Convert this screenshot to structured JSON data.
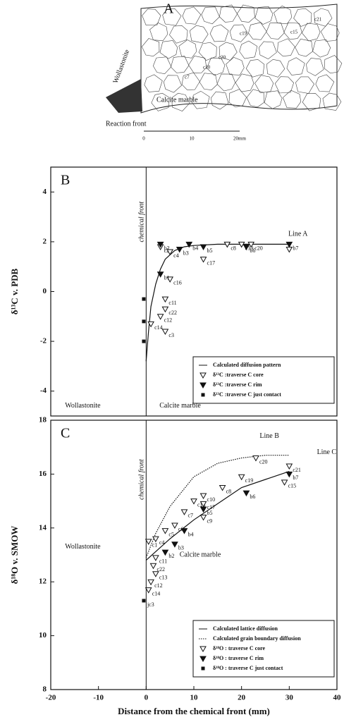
{
  "map": {
    "title": "A",
    "labels": [
      "Wollastonite",
      "Calcite marble",
      "Reaction front"
    ],
    "grains": [
      "c15",
      "c19",
      "c20",
      "c21",
      "c7",
      "c10"
    ],
    "scale": [
      "0",
      "10",
      "20mm"
    ]
  },
  "chart_data": [
    {
      "type": "scatter",
      "title": "B",
      "ylabel": "δ¹³C v. PDB",
      "annotations": [
        "chemical front",
        "Wollastonite",
        "Calcite marble",
        "Line A"
      ],
      "chemical_front_x": 0,
      "xlim": [
        -20,
        40
      ],
      "ylim": [
        -5,
        5
      ],
      "yticks": [
        -4,
        -2,
        0,
        2,
        4
      ],
      "legend": "lower right",
      "series": [
        {
          "name": "Calculated diffusion pattern",
          "marker": "line",
          "color": "#111",
          "x": [
            0,
            0.5,
            1,
            2,
            3,
            4,
            6,
            8,
            10,
            15,
            20,
            30
          ],
          "values": [
            -2.8,
            -1.6,
            -0.6,
            0.3,
            0.9,
            1.3,
            1.65,
            1.8,
            1.85,
            1.9,
            1.9,
            1.9
          ]
        },
        {
          "name": "δ¹³C :traverse C core",
          "marker": "triangle-open",
          "color": "#111",
          "x": [
            3,
            5,
            5,
            4,
            4,
            3,
            1,
            4,
            17,
            20,
            22,
            12,
            30
          ],
          "values": [
            1.8,
            1.6,
            0.5,
            -0.3,
            -0.7,
            -1.0,
            -1.3,
            -1.6,
            1.9,
            1.9,
            1.9,
            1.3,
            1.7
          ],
          "labels": [
            "c2",
            "c4",
            "c16",
            "c11",
            "c22",
            "c12",
            "c14",
            "c3",
            "c8",
            "c19",
            "c20",
            "c17",
            null
          ]
        },
        {
          "name": "δ¹³C :traverse C rim",
          "marker": "triangle-filled",
          "color": "#111",
          "x": [
            3,
            3,
            7,
            9,
            12,
            21,
            30
          ],
          "values": [
            0.7,
            1.9,
            1.7,
            1.9,
            1.8,
            1.8,
            1.9
          ],
          "labels": [
            "b1",
            "b2",
            "b3",
            "b4",
            "b5",
            "b6",
            "b7"
          ]
        },
        {
          "name": "δ¹³C :traverse C just contact",
          "marker": "square",
          "color": "#111",
          "x": [
            -0.5,
            -0.5,
            -0.5
          ],
          "values": [
            -0.3,
            -1.2,
            -2.0
          ]
        }
      ]
    },
    {
      "type": "scatter",
      "title": "C",
      "ylabel": "δ¹⁸O v. SMOW",
      "xlabel": "Distance from the chemical front (mm)",
      "annotations": [
        "chemical front",
        "Wollastonite",
        "Calcite marble",
        "Line B",
        "Line C"
      ],
      "chemical_front_x": 0,
      "xlim": [
        -20,
        40
      ],
      "xticks": [
        -20,
        -10,
        0,
        10,
        20,
        30,
        40
      ],
      "ylim": [
        8,
        18
      ],
      "yticks": [
        8,
        10,
        12,
        14,
        16,
        18
      ],
      "legend": "lower right",
      "series": [
        {
          "name": "Calculated lattice diffusion",
          "marker": "line",
          "color": "#111",
          "x": [
            0,
            5,
            10,
            15,
            20,
            25,
            30
          ],
          "values": [
            12.8,
            13.6,
            14.3,
            14.9,
            15.5,
            15.8,
            16.1
          ]
        },
        {
          "name": "Calculated grain boundary diffusion",
          "marker": "dotline",
          "color": "#111",
          "x": [
            0,
            2,
            5,
            10,
            15,
            20,
            25,
            30
          ],
          "values": [
            12.9,
            13.8,
            14.8,
            15.9,
            16.4,
            16.6,
            16.7,
            16.7
          ]
        },
        {
          "name": "δ¹⁸O : traverse C core",
          "marker": "triangle-open",
          "color": "#111",
          "x": [
            0.5,
            2,
            4,
            6,
            8,
            10,
            12,
            12,
            16,
            20,
            23,
            30,
            29,
            12,
            2,
            1.5,
            2,
            1,
            0.5
          ],
          "values": [
            13.5,
            13.6,
            13.9,
            14.1,
            14.6,
            15.0,
            15.2,
            14.9,
            15.5,
            15.9,
            16.6,
            16.3,
            15.7,
            14.4,
            12.9,
            12.6,
            12.3,
            12.0,
            11.7
          ],
          "labels": [
            "c1",
            "c4",
            "c5",
            "c6",
            "c7",
            "c18",
            "c10",
            "c17",
            "c8",
            "c19",
            "c20",
            "c21",
            "c15",
            "c9",
            "c11",
            "c22",
            "c13",
            "c12",
            "c14"
          ]
        },
        {
          "name": "δ¹⁸O : traverse C rim",
          "marker": "triangle-filled",
          "color": "#111",
          "x": [
            4,
            6,
            8,
            12,
            21,
            30
          ],
          "values": [
            13.1,
            13.4,
            13.9,
            14.7,
            15.3,
            16.0
          ],
          "labels": [
            "b2",
            "b3",
            "b4",
            "b5",
            "b6",
            "b7"
          ]
        },
        {
          "name": "δ¹⁸O : traverse C just contact",
          "marker": "square",
          "color": "#111",
          "x": [
            -0.5
          ],
          "values": [
            11.3
          ],
          "labels": [
            "jc3"
          ]
        }
      ]
    }
  ]
}
